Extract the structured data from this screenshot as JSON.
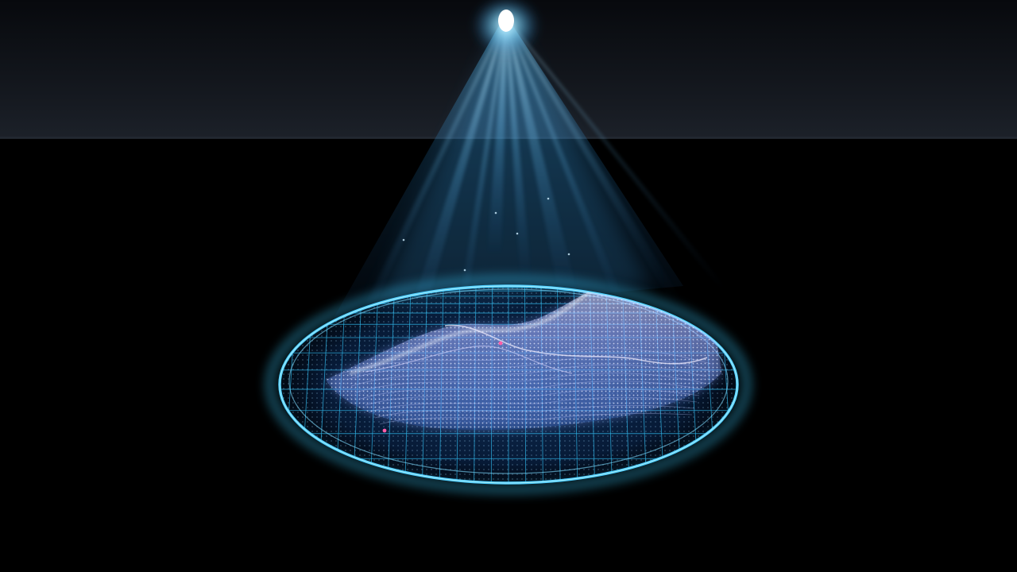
{
  "scene": {
    "subject": "holographic-terrain-projection",
    "icons": [
      "light-beam-icon",
      "hologram-platform-icon",
      "terrain-mesh-icon"
    ]
  },
  "colors": {
    "background": "#000000",
    "horizon_haze": "#1b2027",
    "beam": "#5fc8ff",
    "beam_core": "#e6fbff",
    "ring": "#3fc6f2",
    "grid": "#2fa8d8",
    "terrain_low": "#4a9cff",
    "terrain_high": "#e8e4ff",
    "accent_sparkle": "#ff5da8"
  }
}
